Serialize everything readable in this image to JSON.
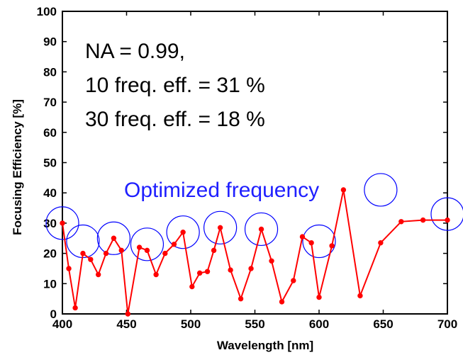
{
  "chart_data": {
    "type": "line",
    "title": "",
    "xlabel": "Wavelength [nm]",
    "ylabel": "Focusing Efficiency [%]",
    "xlim": [
      400,
      700
    ],
    "ylim": [
      0,
      100
    ],
    "x_ticks": [
      400,
      450,
      500,
      550,
      600,
      650,
      700
    ],
    "y_ticks": [
      0,
      10,
      20,
      30,
      40,
      50,
      60,
      70,
      80,
      90,
      100
    ],
    "grid": false,
    "line_color": "#ff0000",
    "marker_color": "#ff0000",
    "highlight_color": "#0000ff",
    "series": [
      {
        "x": [
          400,
          405,
          410,
          416,
          422,
          428,
          434,
          440,
          446,
          451,
          460,
          466,
          473,
          480,
          487,
          494,
          501,
          507,
          513,
          518,
          523,
          531,
          539,
          547,
          555,
          563,
          571,
          580,
          587,
          594,
          600,
          610,
          619,
          632,
          648,
          664,
          681,
          700
        ],
        "y": [
          30,
          15,
          2,
          20,
          18,
          13,
          20,
          25,
          21,
          0,
          22,
          21,
          13,
          20,
          23,
          27,
          9,
          13.5,
          14,
          21,
          28.5,
          14.5,
          5,
          15,
          28,
          17.5,
          4,
          11,
          25.5,
          23.5,
          5.5,
          22.5,
          41,
          6,
          23.5,
          30.5,
          31,
          31
        ]
      }
    ],
    "optimized_x": [
      400,
      416,
      440,
      466,
      494,
      523,
      555,
      600,
      648,
      700
    ],
    "optimized_y": [
      30,
      24,
      25,
      23,
      27,
      28.5,
      28,
      24,
      41,
      33
    ],
    "annotations": {
      "line1": "NA = 0.99,",
      "line2": "10 freq. eff. = 31 %",
      "line3": "30 freq. eff. = 18 %",
      "optimized_label": "Optimized frequency"
    }
  }
}
